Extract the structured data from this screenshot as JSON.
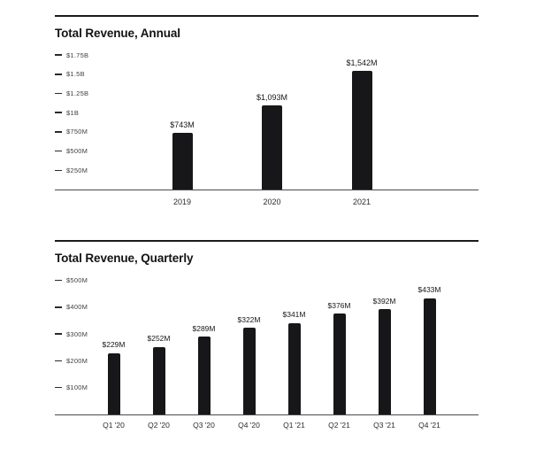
{
  "page": {
    "background": "#ffffff"
  },
  "colors": {
    "bar": "#17171a",
    "rule": "#1c1c1c",
    "baseline": "#4a4a4a",
    "tick_dash": "#2a2a2a",
    "tick_label": "#3f3f3f",
    "title": "#131313",
    "value_label": "#17171a",
    "category_label": "#2b2b2b"
  },
  "chart_data": [
    {
      "type": "bar",
      "title": "Total Revenue, Annual",
      "categories": [
        "2019",
        "2020",
        "2021"
      ],
      "values": [
        743,
        1093,
        1542
      ],
      "value_labels": [
        "$743M",
        "$1,093M",
        "$1,542M"
      ],
      "ylabel": "",
      "xlabel": "",
      "ylim": [
        0,
        1800
      ],
      "grid": false,
      "legend_position": "none",
      "yticks": [
        {
          "label": "$1.75B",
          "value": 1750
        },
        {
          "label": "$1.5B",
          "value": 1500
        },
        {
          "label": "$1.25B",
          "value": 1250
        },
        {
          "label": "$1B",
          "value": 1000
        },
        {
          "label": "$750M",
          "value": 750
        },
        {
          "label": "$500M",
          "value": 500
        },
        {
          "label": "$250M",
          "value": 250
        }
      ]
    },
    {
      "type": "bar",
      "title": "Total Revenue, Quarterly",
      "categories": [
        "Q1 '20",
        "Q2 '20",
        "Q3 '20",
        "Q4 '20",
        "Q1 '21",
        "Q2 '21",
        "Q3 '21",
        "Q4 '21"
      ],
      "values": [
        229,
        252,
        289,
        322,
        341,
        376,
        392,
        433
      ],
      "value_labels": [
        "$229M",
        "$252M",
        "$289M",
        "$322M",
        "$341M",
        "$376M",
        "$392M",
        "$433M"
      ],
      "ylabel": "",
      "xlabel": "",
      "ylim": [
        0,
        550
      ],
      "grid": false,
      "legend_position": "none",
      "yticks": [
        {
          "label": "$500M",
          "value": 500
        },
        {
          "label": "$400M",
          "value": 400
        },
        {
          "label": "$300M",
          "value": 300
        },
        {
          "label": "$200M",
          "value": 200
        },
        {
          "label": "$100M",
          "value": 100
        }
      ]
    }
  ]
}
